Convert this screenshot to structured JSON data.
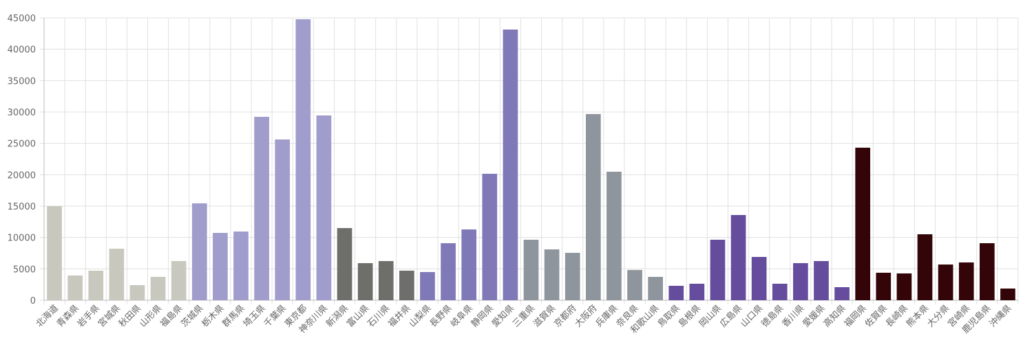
{
  "chart_data": {
    "type": "bar",
    "categories": [
      "北海道",
      "青森県",
      "岩手県",
      "宮城県",
      "秋田県",
      "山形県",
      "福島県",
      "茨城県",
      "栃木県",
      "群馬県",
      "埼玉県",
      "千葉県",
      "東京都",
      "神奈川県",
      "新潟県",
      "富山県",
      "石川県",
      "福井県",
      "山梨県",
      "長野県",
      "岐阜県",
      "静岡県",
      "愛知県",
      "三重県",
      "滋賀県",
      "京都府",
      "大阪府",
      "兵庫県",
      "奈良県",
      "和歌山県",
      "鳥取県",
      "島根県",
      "岡山県",
      "広島県",
      "山口県",
      "徳島県",
      "香川県",
      "愛媛県",
      "高知県",
      "福岡県",
      "佐賀県",
      "長崎県",
      "熊本県",
      "大分県",
      "宮崎県",
      "鹿児島県",
      "沖縄県"
    ],
    "values": [
      15000,
      3940,
      4710,
      8210,
      2410,
      3720,
      6240,
      15440,
      10730,
      10950,
      29230,
      25620,
      44780,
      29450,
      11500,
      5910,
      6240,
      4710,
      4490,
      9090,
      11280,
      20150,
      43140,
      9640,
      8100,
      7550,
      29670,
      20480,
      4820,
      3720,
      2300,
      2630,
      9640,
      13580,
      6900,
      2630,
      5910,
      6240,
      2080,
      24310,
      4380,
      4270,
      10510,
      5690,
      6020,
      9090,
      1860
    ],
    "colors": [
      "#c8c8be",
      "#c8c8be",
      "#c8c8be",
      "#c8c8be",
      "#c8c8be",
      "#c8c8be",
      "#c8c8be",
      "#a09ccc",
      "#a09ccc",
      "#a09ccc",
      "#a09ccc",
      "#a09ccc",
      "#a09ccc",
      "#a09ccc",
      "#6e6e6a",
      "#6e6e6a",
      "#6e6e6a",
      "#6e6e6a",
      "#7f79b8",
      "#7f79b8",
      "#7f79b8",
      "#7f79b8",
      "#7f79b8",
      "#8e959c",
      "#8e959c",
      "#8e959c",
      "#8e959c",
      "#8e959c",
      "#8e959c",
      "#8e959c",
      "#654c9c",
      "#654c9c",
      "#654c9c",
      "#654c9c",
      "#654c9c",
      "#654c9c",
      "#654c9c",
      "#654c9c",
      "#654c9c",
      "#330508",
      "#330508",
      "#330508",
      "#330508",
      "#330508",
      "#330508",
      "#330508",
      "#330508"
    ],
    "ylim": [
      0,
      45000
    ],
    "yticks": [
      0,
      5000,
      10000,
      15000,
      20000,
      25000,
      30000,
      35000,
      40000,
      45000
    ],
    "grid": true
  }
}
